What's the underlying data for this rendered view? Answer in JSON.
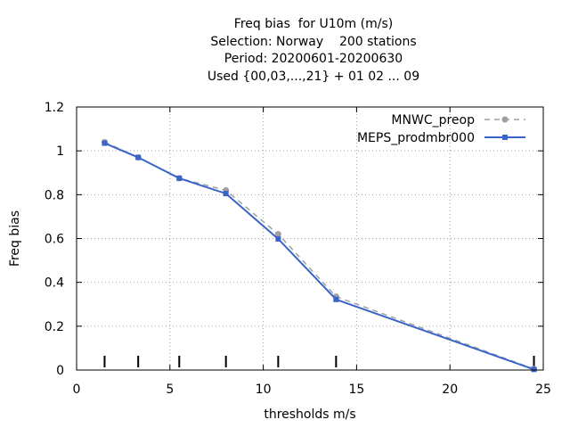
{
  "chart_data": {
    "type": "line",
    "title_lines": [
      "Freq bias  for U10m (m/s)",
      "Selection: Norway    200 stations",
      "Period: 20200601-20200630",
      "Used {00,03,...,21} + 01 02 ... 09"
    ],
    "xlabel": "thresholds m/s",
    "ylabel": "Freq bias",
    "xlim": [
      0,
      25
    ],
    "ylim": [
      0,
      1.2
    ],
    "xticks": [
      "0",
      "5",
      "10",
      "15",
      "20",
      "25"
    ],
    "yticks": [
      "0",
      "0.2",
      "0.4",
      "0.6",
      "0.8",
      "1",
      "1.2"
    ],
    "grid": true,
    "legend_position": "top-right",
    "threshold_markers": [
      1.5,
      3.3,
      5.5,
      8,
      10.8,
      13.9,
      24.5
    ],
    "series": [
      {
        "name": "MNWC_preop",
        "color": "#a0a0a0",
        "dash": true,
        "x": [
          1.5,
          3.3,
          5.5,
          8,
          10.8,
          13.9,
          24.5
        ],
        "y": [
          1.04,
          0.97,
          0.875,
          0.82,
          0.62,
          0.335,
          0.005
        ]
      },
      {
        "name": "MEPS_prodmbr000",
        "color": "#3a64c8",
        "dash": false,
        "x": [
          1.5,
          3.3,
          5.5,
          8,
          10.8,
          13.9,
          24.5
        ],
        "y": [
          1.035,
          0.97,
          0.875,
          0.805,
          0.598,
          0.322,
          0.003
        ]
      }
    ]
  }
}
